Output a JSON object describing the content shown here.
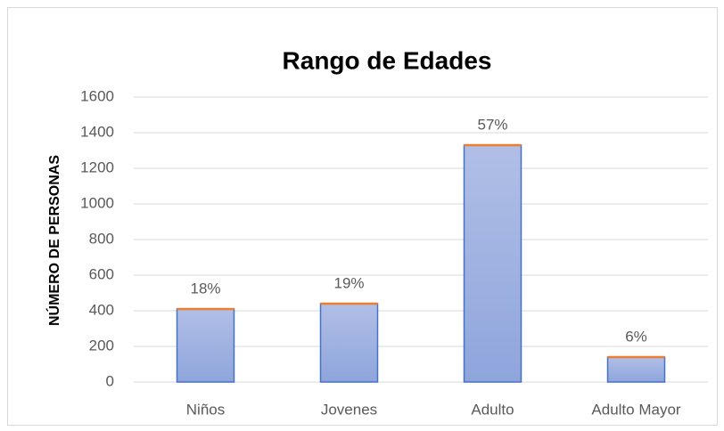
{
  "chart_data": {
    "type": "bar",
    "title": "Rango de Edades",
    "y_label": "NÚMERO DE PERSONAS",
    "categories": [
      "Niños",
      "Jovenes",
      "Adulto",
      "Adulto Mayor"
    ],
    "values": [
      410,
      440,
      1330,
      140
    ],
    "value_labels": [
      "18%",
      "19%",
      "57%",
      "6%"
    ],
    "color": "#a3b4e2",
    "edge_color": "#4472c4",
    "top_color": "#ed7d31",
    "ylim": [
      0,
      1600
    ],
    "yticks": [
      0,
      200,
      400,
      600,
      800,
      1000,
      1200,
      1400,
      1600
    ],
    "grid": true
  }
}
